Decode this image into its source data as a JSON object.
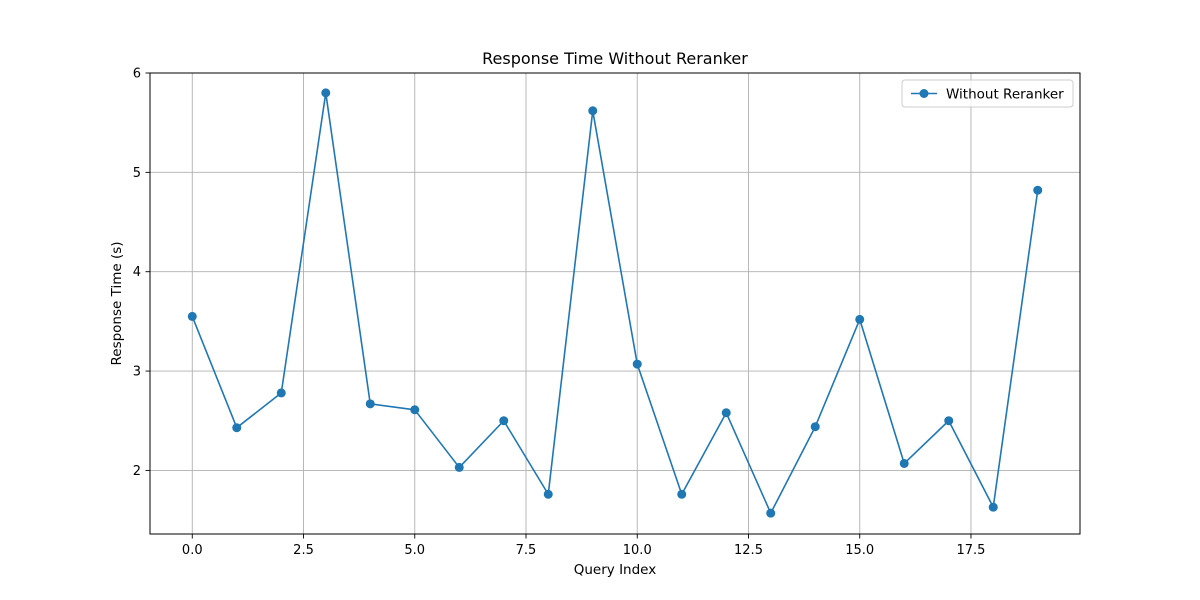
{
  "chart_data": {
    "type": "line",
    "title": "Response Time Without Reranker",
    "xlabel": "Query Index",
    "ylabel": "Response Time (s)",
    "xlim": [
      -0.95,
      19.95
    ],
    "ylim": [
      1.36,
      6.0
    ],
    "xticks": [
      0,
      2.5,
      5,
      7.5,
      10,
      12.5,
      15,
      17.5
    ],
    "xtick_labels": [
      "0.0",
      "2.5",
      "5.0",
      "7.5",
      "10.0",
      "12.5",
      "15.0",
      "17.5"
    ],
    "yticks": [
      2,
      3,
      4,
      5,
      6
    ],
    "ytick_labels": [
      "2",
      "3",
      "4",
      "5",
      "6"
    ],
    "grid": true,
    "legend_position": "top-right",
    "series": [
      {
        "name": "Without Reranker",
        "color": "#1f77b4",
        "marker": "circle",
        "x": [
          0,
          1,
          2,
          3,
          4,
          5,
          6,
          7,
          8,
          9,
          10,
          11,
          12,
          13,
          14,
          15,
          16,
          17,
          18,
          19
        ],
        "y": [
          3.55,
          2.43,
          2.78,
          5.8,
          2.67,
          2.61,
          2.03,
          2.5,
          1.76,
          5.62,
          3.07,
          1.76,
          2.58,
          1.57,
          2.44,
          3.52,
          2.07,
          2.5,
          1.63,
          4.82
        ]
      }
    ]
  }
}
